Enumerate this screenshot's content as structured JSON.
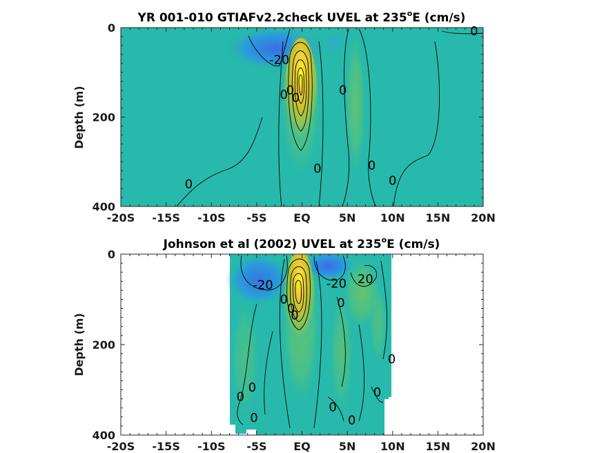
{
  "chart_data": [
    {
      "type": "heatmap",
      "title_main": "YR 001-010 GTIAFv2.2check UVEL at 235",
      "title_sup": "o",
      "title_tail": "E (cm/s)",
      "ylabel": "Depth (m)",
      "xlabel": "",
      "xlim": [
        -20,
        20
      ],
      "ylim": [
        0,
        400
      ],
      "y_reversed": true,
      "x_ticks": [
        -20,
        -15,
        -10,
        -5,
        0,
        5,
        10,
        15,
        20
      ],
      "x_tick_labels": [
        "-20S",
        "-15S",
        "-10S",
        "-5S",
        "EQ",
        "5N",
        "10N",
        "15N",
        "20N"
      ],
      "y_ticks": [
        0,
        200,
        400
      ],
      "y_tick_labels": [
        "0",
        "200",
        "400"
      ],
      "data_extent_x": [
        -20,
        20
      ],
      "contour_interval": 10,
      "undercurrent_core": {
        "lat": 0,
        "depth": 120,
        "speed": 100
      },
      "contour_labels": [
        {
          "text": "0",
          "lat": 19,
          "depth": 8
        },
        {
          "text": "-20",
          "lat": -2.5,
          "depth": 72
        },
        {
          "text": "0",
          "lat": 4.5,
          "depth": 140
        },
        {
          "text": "0",
          "lat": -2,
          "depth": 150
        },
        {
          "text": "0",
          "lat": -1.3,
          "depth": 140
        },
        {
          "text": "0",
          "lat": -0.7,
          "depth": 157
        },
        {
          "text": "0",
          "lat": 1.7,
          "depth": 315
        },
        {
          "text": "0",
          "lat": 7.7,
          "depth": 308
        },
        {
          "text": "0",
          "lat": 10,
          "depth": 342
        },
        {
          "text": "0",
          "lat": -12.5,
          "depth": 350
        }
      ]
    },
    {
      "type": "heatmap",
      "title_main": "Johnson et al (2002) UVEL at 235",
      "title_sup": "o",
      "title_tail": "E (cm/s)",
      "ylabel": "Depth (m)",
      "xlabel": "",
      "xlim": [
        -20,
        20
      ],
      "ylim": [
        0,
        400
      ],
      "y_reversed": true,
      "x_ticks": [
        -20,
        -15,
        -10,
        -5,
        0,
        5,
        10,
        15,
        20
      ],
      "x_tick_labels": [
        "-20S",
        "-15S",
        "-10S",
        "-5S",
        "EQ",
        "5N",
        "10N",
        "15N",
        "20N"
      ],
      "y_ticks": [
        0,
        200,
        400
      ],
      "y_tick_labels": [
        "0",
        "200",
        "400"
      ],
      "data_extent_x": [
        -8,
        10
      ],
      "contour_interval": 10,
      "undercurrent_core": {
        "lat": 0,
        "depth": 100,
        "speed": 100
      },
      "contour_labels": [
        {
          "text": "-20",
          "lat": -4.3,
          "depth": 68
        },
        {
          "text": "-20",
          "lat": 3.8,
          "depth": 65
        },
        {
          "text": "20",
          "lat": 7,
          "depth": 55
        },
        {
          "text": "0",
          "lat": -2,
          "depth": 100
        },
        {
          "text": "0",
          "lat": -1.2,
          "depth": 120
        },
        {
          "text": "0",
          "lat": -0.8,
          "depth": 135
        },
        {
          "text": "0",
          "lat": 4.3,
          "depth": 108
        },
        {
          "text": "0",
          "lat": 9.9,
          "depth": 232
        },
        {
          "text": "0",
          "lat": -5.5,
          "depth": 295
        },
        {
          "text": "0",
          "lat": -6.8,
          "depth": 315
        },
        {
          "text": "0",
          "lat": -5.3,
          "depth": 362
        },
        {
          "text": "0",
          "lat": 3.4,
          "depth": 338
        },
        {
          "text": "0",
          "lat": 8.3,
          "depth": 305
        },
        {
          "text": "0",
          "lat": 5.5,
          "depth": 367
        }
      ]
    }
  ]
}
